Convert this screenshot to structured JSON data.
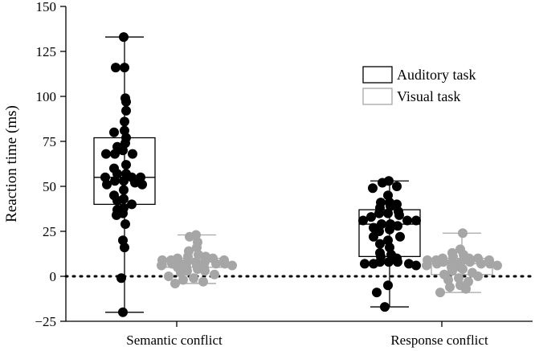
{
  "chart_data": {
    "type": "box-scatter",
    "ylabel": "Reaction time (ms)",
    "ylim": [
      -25,
      150
    ],
    "yticks": [
      "−25",
      "0",
      "25",
      "50",
      "75",
      "100",
      "125",
      "150"
    ],
    "ytick_values": [
      -25,
      0,
      25,
      50,
      75,
      100,
      125,
      150
    ],
    "categories": [
      "Semantic conflict",
      "Response conflict"
    ],
    "reference_line": {
      "y": 0,
      "style": "dotted"
    },
    "legend": {
      "position": "top-right"
    },
    "series": [
      {
        "name": "Auditory task",
        "color": "#000000",
        "boxes": [
          {
            "category": "Semantic conflict",
            "min": -20,
            "q1": 40,
            "median": 55,
            "q3": 77,
            "max": 133,
            "points": [
              133,
              116,
              116,
              99,
              97,
              92,
              86,
              81,
              80,
              77,
              74,
              72,
              70,
              68,
              68,
              68,
              62,
              60,
              57,
              57,
              55,
              55,
              55,
              53,
              53,
              52,
              51,
              51,
              48,
              45,
              43,
              42,
              40,
              38,
              37,
              35,
              34,
              29,
              20,
              16,
              -1,
              -20
            ]
          },
          {
            "category": "Response conflict",
            "min": -17,
            "q1": 11,
            "median": 29,
            "q3": 37,
            "max": 53,
            "points": [
              53,
              52,
              50,
              49,
              45,
              41,
              41,
              40,
              39,
              38,
              36,
              35,
              35,
              34,
              33,
              31,
              31,
              31,
              29,
              29,
              28,
              27,
              26,
              25,
              22,
              22,
              20,
              18,
              16,
              13,
              12,
              11,
              10,
              8,
              8,
              8,
              7,
              7,
              7,
              6,
              -5,
              -9,
              -17
            ]
          }
        ]
      },
      {
        "name": "Visual task",
        "color": "#a6a6a6",
        "boxes": [
          {
            "category": "Semantic conflict",
            "min": -4,
            "q1": 5,
            "median": 8,
            "q3": 10,
            "max": 23,
            "points": [
              23,
              22,
              19,
              16,
              14,
              12,
              11,
              11,
              10,
              10,
              9,
              9,
              9,
              8,
              8,
              8,
              8,
              7,
              7,
              7,
              6,
              6,
              6,
              5,
              5,
              5,
              4,
              3,
              3,
              2,
              1,
              0,
              -1,
              -2,
              -3,
              -4
            ]
          },
          {
            "category": "Response conflict",
            "min": -9,
            "q1": 1,
            "median": 7,
            "q3": 10,
            "max": 24,
            "points": [
              24,
              15,
              13,
              12,
              11,
              10,
              10,
              10,
              9,
              9,
              9,
              8,
              8,
              8,
              8,
              7,
              7,
              7,
              6,
              6,
              5,
              5,
              4,
              3,
              2,
              1,
              0,
              -1,
              -2,
              -3,
              -5,
              -6,
              -7,
              -9
            ]
          }
        ]
      }
    ]
  }
}
